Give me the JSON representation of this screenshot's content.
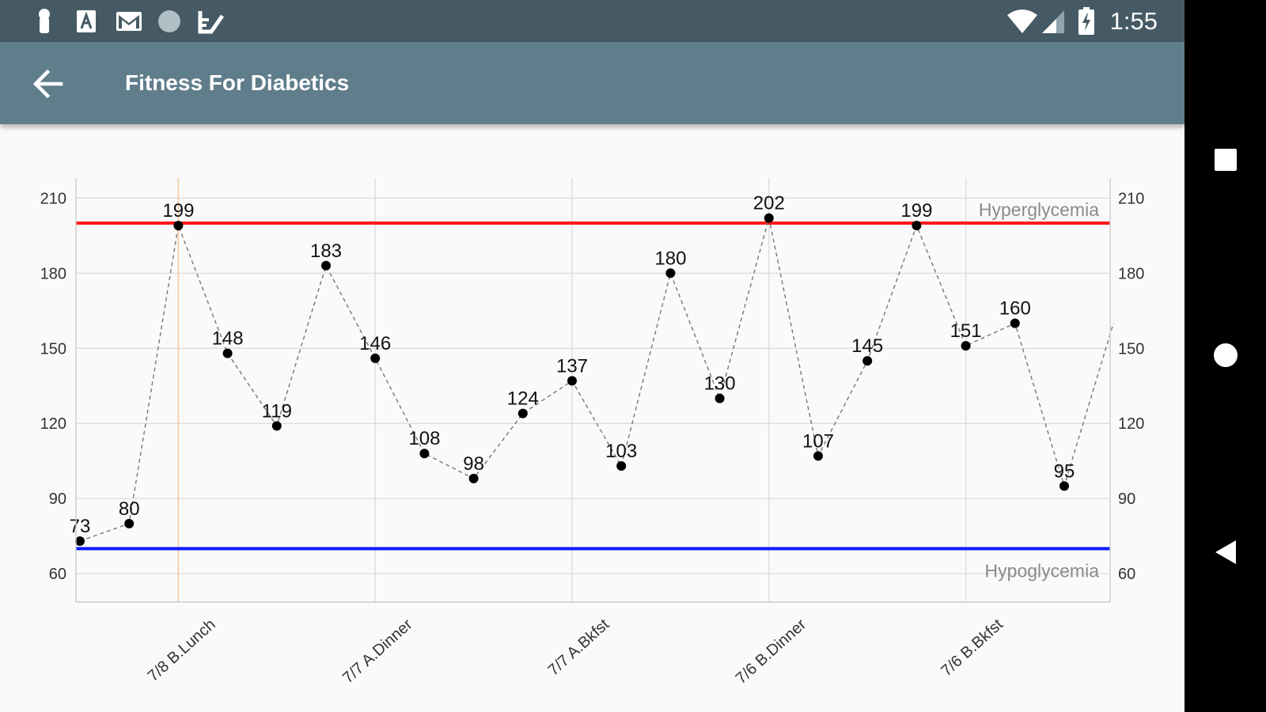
{
  "status_bar": {
    "time": "1:55",
    "left_icons": [
      "person-icon",
      "font-icon",
      "gmail-icon",
      "circle-icon",
      "task-icon"
    ],
    "right_icons": [
      "wifi-icon",
      "signal-icon",
      "battery-charging-icon"
    ]
  },
  "app_bar": {
    "title": "Fitness For Diabetics",
    "back_icon": "arrow-back-icon"
  },
  "navigation_bar": {
    "buttons": [
      "recents-icon",
      "home-icon",
      "back-icon"
    ]
  },
  "colors": {
    "status_bar": "#455a64",
    "app_bar": "#607d8b",
    "hyper_line": "#ff1a1a",
    "hypo_line": "#0d1aff",
    "highlight_line": "#f5c9a0",
    "data_point": "#000000"
  },
  "chart_data": {
    "type": "line",
    "title": "",
    "xlabel": "",
    "ylabel": "",
    "ylim": [
      55,
      218
    ],
    "y_ticks": [
      60,
      90,
      120,
      150,
      180,
      210
    ],
    "y_tick_labels": [
      "60",
      "90",
      "120",
      "150",
      "180",
      "210"
    ],
    "x_tick_labels": [
      "7/8 B.Lunch",
      "7/7 A.Dinner",
      "7/7 A.Bkfst",
      "7/6 B.Dinner",
      "7/6 B.Bkfst"
    ],
    "x_tick_indices": [
      2,
      6,
      10,
      14,
      18
    ],
    "highlighted_index": 2,
    "grid": true,
    "line_style": "dashed",
    "series": [
      {
        "values": [
          73,
          80,
          199,
          148,
          119,
          183,
          146,
          108,
          98,
          124,
          137,
          103,
          180,
          130,
          202,
          107,
          145,
          199,
          151,
          160,
          95,
          160
        ],
        "labels": [
          "73",
          "80",
          "199",
          "148",
          "119",
          "183",
          "146",
          "108",
          "98",
          "124",
          "137",
          "103",
          "180",
          "130",
          "202",
          "107",
          "145",
          "199",
          "151",
          "160",
          "95",
          ""
        ]
      }
    ],
    "reference_lines": [
      {
        "name": "Hyperglycemia",
        "value": 200,
        "color": "#ff1a1a",
        "label_position": "top-right"
      },
      {
        "name": "Hypoglycemia",
        "value": 70,
        "color": "#0d1aff",
        "label_position": "bottom-right"
      }
    ]
  }
}
